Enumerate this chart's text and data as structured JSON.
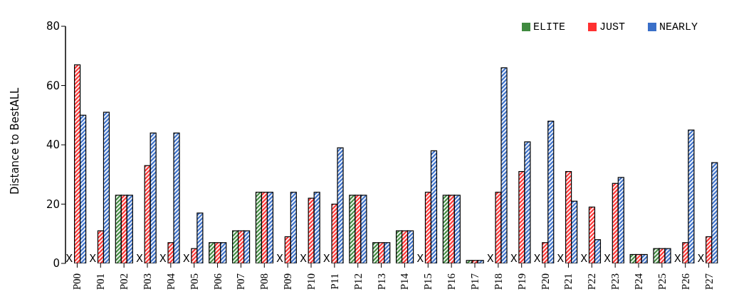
{
  "chart_data": {
    "type": "bar",
    "ylabel": "Distance to BestALL",
    "categories": [
      "P00",
      "P01",
      "P02",
      "P03",
      "P04",
      "P05",
      "P06",
      "P07",
      "P08",
      "P09",
      "P10",
      "P11",
      "P12",
      "P13",
      "P14",
      "P15",
      "P16",
      "P17",
      "P18",
      "P19",
      "P20",
      "P21",
      "P22",
      "P23",
      "P24",
      "P25",
      "P26",
      "P27"
    ],
    "series": [
      {
        "name": "ELITE",
        "color": "#3f8a3f",
        "values": [
          null,
          null,
          23,
          null,
          null,
          null,
          7,
          11,
          24,
          null,
          null,
          null,
          23,
          7,
          11,
          null,
          23,
          1,
          null,
          null,
          null,
          null,
          null,
          null,
          3,
          5,
          null,
          null
        ]
      },
      {
        "name": "JUST",
        "color": "#ff3030",
        "values": [
          67,
          11,
          23,
          33,
          7,
          5,
          7,
          11,
          24,
          9,
          22,
          20,
          23,
          7,
          11,
          24,
          23,
          1,
          24,
          31,
          7,
          31,
          19,
          27,
          3,
          5,
          7,
          9
        ]
      },
      {
        "name": "NEARLY",
        "color": "#3a6fc8",
        "values": [
          50,
          51,
          23,
          44,
          44,
          17,
          7,
          11,
          24,
          24,
          24,
          39,
          23,
          7,
          11,
          38,
          23,
          1,
          66,
          41,
          48,
          21,
          8,
          29,
          3,
          5,
          45,
          34
        ]
      }
    ],
    "annotations": [
      {
        "text": "X",
        "x": "P00",
        "y": 0
      },
      {
        "text": "X",
        "x": "P01",
        "y": 0
      },
      {
        "text": "X",
        "x": "P03",
        "y": 0
      },
      {
        "text": "X",
        "x": "P04",
        "y": 0
      },
      {
        "text": "X",
        "x": "P05",
        "y": 0
      },
      {
        "text": "X",
        "x": "P09",
        "y": 0
      },
      {
        "text": "X",
        "x": "P10",
        "y": 0
      },
      {
        "text": "X",
        "x": "P11",
        "y": 0
      },
      {
        "text": "X",
        "x": "P15",
        "y": 0
      },
      {
        "text": "X",
        "x": "P18",
        "y": 0
      },
      {
        "text": "X",
        "x": "P19",
        "y": 0
      },
      {
        "text": "X",
        "x": "P20",
        "y": 0
      },
      {
        "text": "X",
        "x": "P21",
        "y": 0
      },
      {
        "text": "X",
        "x": "P22",
        "y": 0
      },
      {
        "text": "X",
        "x": "P23",
        "y": 0
      },
      {
        "text": "X",
        "x": "P26",
        "y": 0
      },
      {
        "text": "X",
        "x": "P27",
        "y": 0
      }
    ],
    "ylim": [
      0,
      80
    ],
    "yticks": [
      0,
      20,
      40,
      60,
      80
    ],
    "grid": false,
    "legend": "top right"
  }
}
